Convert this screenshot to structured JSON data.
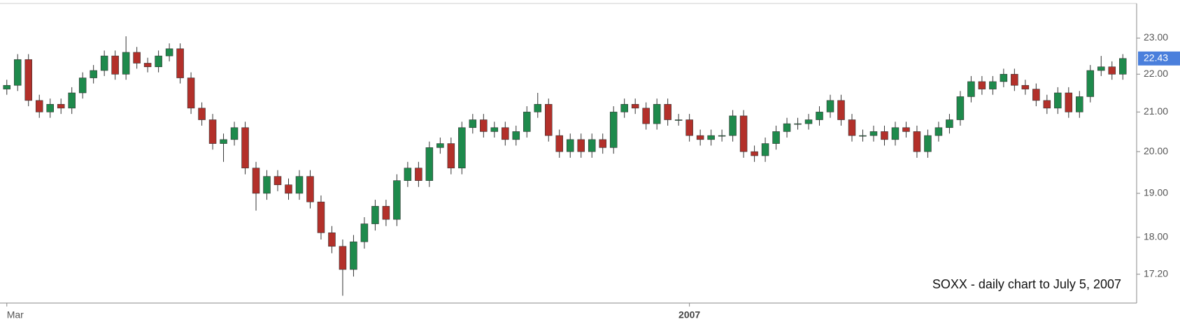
{
  "chart_data": {
    "type": "candlestick",
    "annotation": "SOXX - daily chart to July 5, 2007",
    "categories": [
      "Mar",
      null,
      null,
      null,
      null,
      null,
      null,
      null,
      null,
      null,
      null,
      null,
      null,
      null,
      null,
      null,
      null,
      null,
      null,
      null,
      null,
      null,
      null,
      null,
      null,
      null,
      null,
      null,
      null,
      null,
      null,
      null,
      null,
      null,
      null,
      null,
      null,
      null,
      null,
      null,
      null,
      null,
      null,
      null,
      null,
      null,
      null,
      null,
      null,
      null,
      null,
      null,
      null,
      null,
      null,
      null,
      null,
      null,
      null,
      null,
      null,
      null,
      null,
      "2007",
      null,
      null,
      null,
      null,
      null,
      null,
      null,
      null,
      null,
      null,
      null,
      null,
      null,
      null,
      null,
      null,
      null,
      null,
      null,
      null,
      null,
      null,
      null,
      null,
      null,
      null,
      null,
      null,
      null,
      null,
      null,
      null,
      null,
      null,
      null,
      null,
      null,
      null,
      null,
      null
    ],
    "open": [
      21.6,
      21.7,
      22.4,
      21.3,
      21.0,
      21.2,
      21.1,
      21.5,
      21.9,
      22.1,
      22.5,
      22.0,
      22.6,
      22.3,
      22.2,
      22.5,
      22.7,
      21.9,
      21.1,
      20.8,
      20.2,
      20.3,
      20.6,
      19.6,
      19.0,
      19.4,
      19.2,
      19.0,
      19.4,
      18.8,
      18.1,
      17.8,
      17.3,
      17.9,
      18.3,
      18.7,
      18.4,
      19.3,
      19.6,
      19.3,
      20.1,
      20.2,
      19.6,
      20.6,
      20.8,
      20.5,
      20.6,
      20.3,
      20.5,
      21.0,
      21.2,
      20.4,
      20.0,
      20.3,
      20.0,
      20.3,
      20.1,
      21.0,
      21.2,
      21.1,
      20.7,
      21.2,
      20.8,
      20.8,
      20.4,
      20.3,
      20.4,
      20.4,
      20.9,
      20.0,
      19.9,
      20.2,
      20.5,
      20.7,
      20.7,
      20.8,
      21.0,
      21.3,
      20.8,
      20.4,
      20.4,
      20.5,
      20.3,
      20.6,
      20.5,
      20.0,
      20.4,
      20.6,
      20.8,
      21.4,
      21.8,
      21.6,
      21.8,
      22.0,
      21.7,
      21.6,
      21.3,
      21.1,
      21.5,
      21.0,
      21.4,
      22.1,
      22.2,
      22.0
    ],
    "high": [
      21.85,
      22.55,
      22.55,
      21.45,
      21.35,
      21.35,
      21.65,
      22.05,
      22.25,
      22.65,
      22.65,
      23.05,
      22.75,
      22.45,
      22.65,
      22.85,
      22.85,
      22.05,
      21.25,
      20.95,
      20.45,
      20.75,
      20.75,
      19.75,
      19.55,
      19.55,
      19.35,
      19.55,
      19.55,
      18.95,
      18.25,
      17.95,
      18.05,
      18.45,
      18.85,
      18.85,
      19.45,
      19.75,
      19.75,
      20.25,
      20.35,
      20.35,
      20.75,
      20.95,
      20.95,
      20.75,
      20.75,
      20.65,
      21.15,
      21.5,
      21.35,
      20.55,
      20.45,
      20.45,
      20.45,
      20.45,
      21.15,
      21.35,
      21.35,
      21.25,
      21.35,
      21.35,
      20.95,
      20.95,
      20.55,
      20.55,
      20.55,
      21.05,
      21.05,
      20.15,
      20.35,
      20.65,
      20.85,
      20.85,
      20.95,
      21.15,
      21.45,
      21.45,
      20.95,
      20.55,
      20.65,
      20.65,
      20.75,
      20.75,
      20.65,
      20.55,
      20.75,
      20.95,
      21.55,
      21.95,
      21.95,
      21.95,
      22.15,
      22.15,
      21.85,
      21.75,
      21.45,
      21.65,
      21.65,
      21.55,
      22.25,
      22.5,
      22.35,
      22.55
    ],
    "low": [
      21.45,
      21.55,
      21.15,
      20.85,
      20.85,
      20.95,
      20.95,
      21.35,
      21.75,
      21.95,
      21.85,
      21.85,
      22.15,
      22.05,
      22.05,
      22.35,
      21.75,
      20.95,
      20.65,
      20.05,
      19.75,
      20.15,
      19.45,
      18.6,
      18.85,
      19.05,
      18.85,
      18.85,
      18.65,
      17.95,
      17.65,
      16.75,
      17.15,
      17.75,
      18.15,
      18.25,
      18.25,
      19.15,
      19.15,
      19.15,
      19.95,
      19.45,
      19.45,
      20.45,
      20.35,
      20.35,
      20.15,
      20.15,
      20.35,
      20.85,
      20.25,
      19.85,
      19.85,
      19.85,
      19.85,
      19.95,
      19.95,
      20.85,
      20.95,
      20.55,
      20.55,
      20.65,
      20.65,
      20.25,
      20.15,
      20.15,
      20.25,
      20.25,
      19.85,
      19.75,
      19.75,
      20.05,
      20.35,
      20.55,
      20.55,
      20.65,
      20.85,
      20.65,
      20.25,
      20.25,
      20.25,
      20.15,
      20.15,
      20.35,
      19.85,
      19.85,
      20.25,
      20.45,
      20.65,
      21.25,
      21.45,
      21.45,
      21.65,
      21.55,
      21.45,
      21.15,
      20.95,
      20.95,
      20.85,
      20.85,
      21.25,
      21.95,
      21.85,
      21.85
    ],
    "close": [
      21.7,
      22.4,
      21.3,
      21.0,
      21.2,
      21.1,
      21.5,
      21.9,
      22.1,
      22.5,
      22.0,
      22.6,
      22.3,
      22.2,
      22.5,
      22.7,
      21.9,
      21.1,
      20.8,
      20.2,
      20.3,
      20.6,
      19.6,
      19.0,
      19.4,
      19.2,
      19.0,
      19.4,
      18.8,
      18.1,
      17.8,
      17.3,
      17.9,
      18.3,
      18.7,
      18.4,
      19.3,
      19.6,
      19.3,
      20.1,
      20.2,
      19.6,
      20.6,
      20.8,
      20.5,
      20.6,
      20.3,
      20.5,
      21.0,
      21.2,
      20.4,
      20.0,
      20.3,
      20.0,
      20.3,
      20.1,
      21.0,
      21.2,
      21.1,
      20.7,
      21.2,
      20.8,
      20.8,
      20.4,
      20.3,
      20.4,
      20.4,
      20.9,
      20.0,
      19.9,
      20.2,
      20.5,
      20.7,
      20.7,
      20.8,
      21.0,
      21.3,
      20.8,
      20.4,
      20.4,
      20.5,
      20.3,
      20.6,
      20.5,
      20.0,
      20.4,
      20.6,
      20.8,
      21.4,
      21.8,
      21.6,
      21.8,
      22.0,
      21.7,
      21.6,
      21.3,
      21.1,
      21.5,
      21.0,
      21.4,
      22.1,
      22.2,
      22.0,
      22.43
    ],
    "up_color": "#1e8a4c",
    "down_color": "#b3302a",
    "last_value": 22.43,
    "last_value_label": "22.43",
    "last_value_color": "#4a7fdc",
    "log_scale": true,
    "ylim": [
      16.6,
      24.0
    ],
    "yticks": [
      {
        "value": 17.2,
        "label": "17.20"
      },
      {
        "value": 18,
        "label": "18.00"
      },
      {
        "value": 19,
        "label": "19.00"
      },
      {
        "value": 20,
        "label": "20.00"
      },
      {
        "value": 21,
        "label": "21.00"
      },
      {
        "value": 22,
        "label": "22.00"
      },
      {
        "value": 23,
        "label": "23.00"
      }
    ]
  }
}
